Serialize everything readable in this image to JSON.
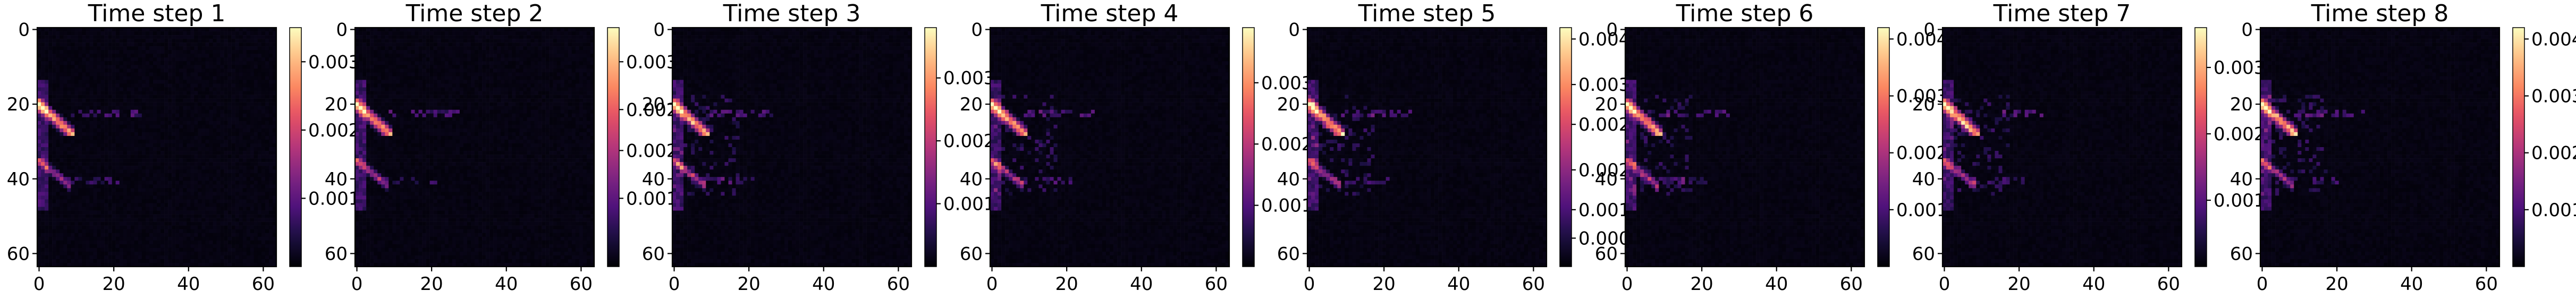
{
  "chart_data": [
    {
      "type": "heatmap",
      "title": "Time step 1",
      "x_ticks": [
        "0",
        "20",
        "40",
        "60"
      ],
      "y_ticks": [
        "0",
        "20",
        "40",
        "60"
      ],
      "grid_size": [
        64,
        64
      ],
      "colormap": "magma",
      "colorbar_range": [
        0,
        0.0035
      ],
      "colorbar_ticks": [
        "0.001",
        "0.002",
        "0.003"
      ],
      "colorbar_tick_values": [
        0.001,
        0.002,
        0.003
      ]
    },
    {
      "type": "heatmap",
      "title": "Time step 2",
      "x_ticks": [
        "0",
        "20",
        "40",
        "60"
      ],
      "y_ticks": [
        "0",
        "20",
        "40",
        "60"
      ],
      "grid_size": [
        64,
        64
      ],
      "colormap": "magma",
      "colorbar_range": [
        0,
        0.0035
      ],
      "colorbar_ticks": [
        "0.001",
        "0.002",
        "0.002",
        "0.003"
      ],
      "colorbar_tick_values": [
        0.001,
        0.0017,
        0.0023,
        0.003
      ]
    },
    {
      "type": "heatmap",
      "title": "Time step 3",
      "x_ticks": [
        "0",
        "20",
        "40",
        "60"
      ],
      "y_ticks": [
        "0",
        "20",
        "40",
        "60"
      ],
      "grid_size": [
        64,
        64
      ],
      "colormap": "magma",
      "colorbar_range": [
        0,
        0.0038
      ],
      "colorbar_ticks": [
        "0.001",
        "0.002",
        "0.003"
      ],
      "colorbar_tick_values": [
        0.001,
        0.002,
        0.003
      ]
    },
    {
      "type": "heatmap",
      "title": "Time step 4",
      "x_ticks": [
        "0",
        "20",
        "40",
        "60"
      ],
      "y_ticks": [
        "0",
        "20",
        "40",
        "60"
      ],
      "grid_size": [
        64,
        64
      ],
      "colormap": "magma",
      "colorbar_range": [
        0,
        0.0039
      ],
      "colorbar_ticks": [
        "0.001",
        "0.002",
        "0.003"
      ],
      "colorbar_tick_values": [
        0.001,
        0.002,
        0.003
      ]
    },
    {
      "type": "heatmap",
      "title": "Time step 5",
      "x_ticks": [
        "0",
        "20",
        "40",
        "60"
      ],
      "y_ticks": [
        "0",
        "20",
        "40",
        "60"
      ],
      "grid_size": [
        64,
        64
      ],
      "colormap": "magma",
      "colorbar_range": [
        0,
        0.0042
      ],
      "colorbar_ticks": [
        "0.000",
        "0.001",
        "0.002",
        "0.002",
        "0.003",
        "0.004"
      ],
      "colorbar_tick_values": [
        0.0005,
        0.001,
        0.0017,
        0.0025,
        0.0032,
        0.004
      ]
    },
    {
      "type": "heatmap",
      "title": "Time step 6",
      "x_ticks": [
        "0",
        "20",
        "40",
        "60"
      ],
      "y_ticks": [
        "0",
        "20",
        "40",
        "60"
      ],
      "grid_size": [
        64,
        64
      ],
      "colormap": "magma",
      "colorbar_range": [
        0,
        0.0042
      ],
      "colorbar_ticks": [
        "0.001",
        "0.002",
        "0.003",
        "0.004"
      ],
      "colorbar_tick_values": [
        0.001,
        0.002,
        0.003,
        0.004
      ]
    },
    {
      "type": "heatmap",
      "title": "Time step 7",
      "x_ticks": [
        "0",
        "20",
        "40",
        "60"
      ],
      "y_ticks": [
        "0",
        "20",
        "40",
        "60"
      ],
      "grid_size": [
        64,
        64
      ],
      "colormap": "magma",
      "colorbar_range": [
        0,
        0.0036
      ],
      "colorbar_ticks": [
        "0.001",
        "0.002",
        "0.003"
      ],
      "colorbar_tick_values": [
        0.001,
        0.002,
        0.003
      ]
    },
    {
      "type": "heatmap",
      "title": "Time step 8",
      "x_ticks": [
        "0",
        "20",
        "40",
        "60"
      ],
      "y_ticks": [
        "0",
        "20",
        "40",
        "60"
      ],
      "grid_size": [
        64,
        64
      ],
      "colormap": "magma",
      "colorbar_range": [
        0,
        0.0042
      ],
      "colorbar_ticks": [
        "0.001",
        "0.002",
        "0.003",
        "0.004"
      ],
      "colorbar_tick_values": [
        0.001,
        0.002,
        0.003,
        0.004
      ]
    }
  ]
}
